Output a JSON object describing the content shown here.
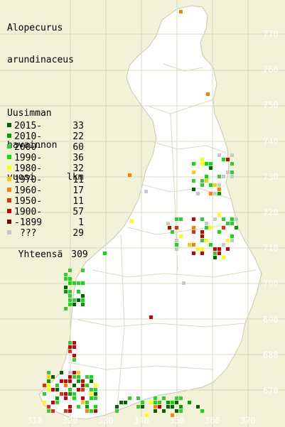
{
  "title": {
    "line1": "Alopecurus",
    "line2": "arundinaceus"
  },
  "legend": {
    "heading": [
      "Uusimman",
      "havainnon",
      "vuosi"
    ],
    "count_header": "lkm",
    "rows": [
      {
        "label": "2015-",
        "count": "33",
        "color": "#006400"
      },
      {
        "label": "2010-",
        "count": "22",
        "color": "#00a000"
      },
      {
        "label": "2000-",
        "count": "60",
        "color": "#32cd32"
      },
      {
        "label": "1990-",
        "count": "36",
        "color": "#00e600"
      },
      {
        "label": "1980-",
        "count": "32",
        "color": "#ffff00"
      },
      {
        "label": "1970-",
        "count": "11",
        "color": "#ffcc00"
      },
      {
        "label": "1960-",
        "count": "17",
        "color": "#ff8000"
      },
      {
        "label": "1950-",
        "count": "11",
        "color": "#e0300f"
      },
      {
        "label": "1900-",
        "count": "57",
        "color": "#cc0000"
      },
      {
        "label": "-1899",
        "count": "1",
        "color": "#800000"
      },
      {
        "label": "???",
        "count": "29",
        "color": "#c8c8c8"
      }
    ],
    "total_label": "Yhteensä",
    "total_count": "309"
  },
  "y_axis_labels": [
    "770",
    "760",
    "750",
    "740",
    "730",
    "720",
    "710",
    "700",
    "690",
    "680",
    "670"
  ],
  "x_axis_labels": [
    "310",
    "320",
    "330",
    "340",
    "350",
    "360",
    "370"
  ],
  "colors": {
    "background": "#f2f2d8",
    "land": "#ffffff",
    "grid": "#d8d8c0",
    "border": "#c8c8b0"
  }
}
